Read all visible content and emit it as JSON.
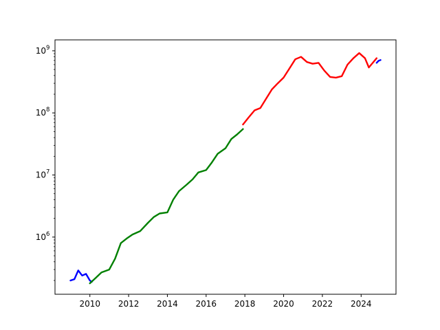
{
  "chart_data": {
    "type": "line",
    "title": "",
    "xlabel": "",
    "ylabel": "",
    "yscale": "log",
    "grid": false,
    "legend": "none",
    "xlim": [
      2008.2,
      2025.8
    ],
    "ylim": [
      120000,
      1500000000
    ],
    "x_ticks": [
      2010,
      2012,
      2014,
      2016,
      2018,
      2020,
      2022,
      2024
    ],
    "x_tick_labels": [
      "2010",
      "2012",
      "2014",
      "2016",
      "2018",
      "2020",
      "2022",
      "2024"
    ],
    "y_ticks": [
      {
        "value": 1000000,
        "base": "10",
        "exp": "6"
      },
      {
        "value": 10000000,
        "base": "10",
        "exp": "7"
      },
      {
        "value": 100000000,
        "base": "10",
        "exp": "8"
      },
      {
        "value": 1000000000,
        "base": "10",
        "exp": "9"
      }
    ],
    "series": [
      {
        "color": "#0000ff",
        "x": [
          2009.0,
          2009.2,
          2009.4,
          2009.6,
          2009.8,
          2010.0,
          2010.1
        ],
        "y": [
          200000,
          210000,
          290000,
          240000,
          255000,
          200000,
          190000
        ]
      },
      {
        "color": "#008000",
        "x": [
          2010.0,
          2010.3,
          2010.6,
          2011.0,
          2011.3,
          2011.6,
          2011.9,
          2012.2,
          2012.6,
          2013.0,
          2013.3,
          2013.6,
          2014.0,
          2014.3,
          2014.6,
          2015.0,
          2015.3,
          2015.6,
          2016.0,
          2016.3,
          2016.6,
          2017.0,
          2017.3,
          2017.6,
          2017.9
        ],
        "y": [
          180000,
          220000,
          270000,
          300000,
          450000,
          800000,
          950000,
          1100000,
          1250000,
          1700000,
          2100000,
          2400000,
          2500000,
          4000000,
          5500000,
          7000000,
          8500000,
          11000000,
          12000000,
          16000000,
          22000000,
          27000000,
          38000000,
          45000000,
          55000000
        ]
      },
      {
        "color": "#ff0000",
        "x": [
          2017.9,
          2018.2,
          2018.5,
          2018.8,
          2019.1,
          2019.4,
          2019.7,
          2020.0,
          2020.3,
          2020.6,
          2020.9,
          2021.2,
          2021.5,
          2021.8,
          2022.1,
          2022.4,
          2022.7,
          2023.0,
          2023.3,
          2023.6,
          2023.9,
          2024.2,
          2024.4,
          2024.6,
          2024.8
        ],
        "y": [
          65000000,
          85000000,
          110000000,
          120000000,
          170000000,
          240000000,
          300000000,
          370000000,
          520000000,
          730000000,
          800000000,
          660000000,
          620000000,
          640000000,
          480000000,
          380000000,
          370000000,
          390000000,
          600000000,
          760000000,
          920000000,
          760000000,
          540000000,
          640000000,
          760000000
        ]
      },
      {
        "color": "#0000ff",
        "x": [
          2024.8,
          2024.9,
          2025.0
        ],
        "y": [
          640000000,
          690000000,
          710000000
        ]
      }
    ]
  }
}
